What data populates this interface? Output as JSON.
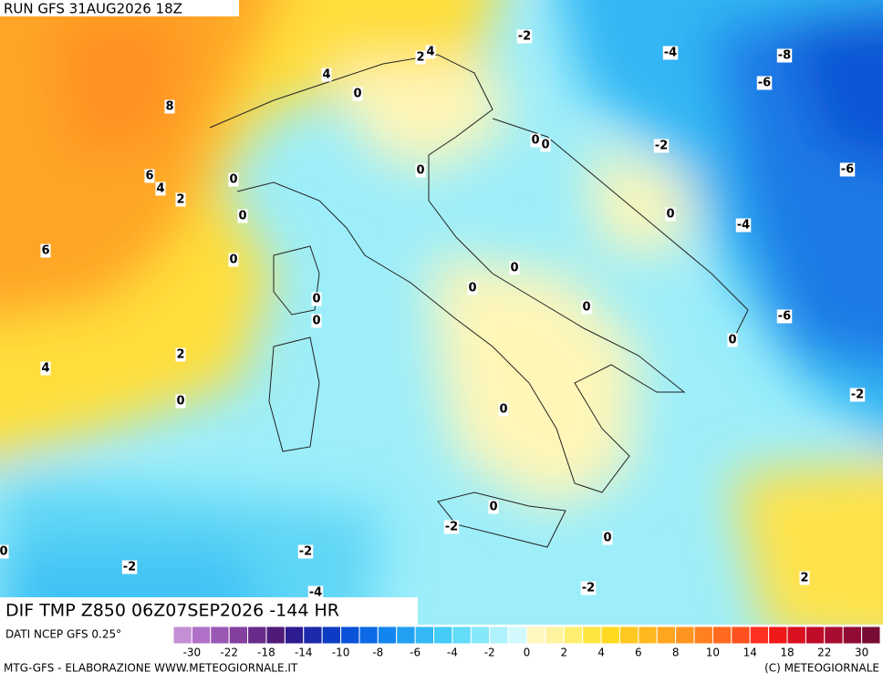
{
  "header": {
    "run": "RUN GFS 31AUG2026 18Z"
  },
  "footer": {
    "field": "DIF TMP Z850 06Z07SEP2026 -144 HR",
    "source": "DATI NCEP GFS 0.25°",
    "credit": "MTG-GFS - ELABORAZIONE WWW.METEOGIORNALE.IT",
    "copyright": "(C) METEOGIORNALE"
  },
  "map": {
    "contour_labels": [
      -2,
      -4,
      -8,
      -6,
      4,
      2,
      4,
      0,
      8,
      -2,
      0,
      0,
      0,
      -6,
      6,
      4,
      2,
      0,
      0,
      0,
      -4,
      6,
      0,
      0,
      0,
      0,
      0,
      0,
      -6,
      0,
      2,
      4,
      0,
      -2,
      0,
      0,
      -2,
      0,
      0,
      -2,
      -2,
      2,
      -4,
      -2
    ]
  },
  "colorbar": {
    "ticks": [
      -30,
      -22,
      -18,
      -14,
      -10,
      -8,
      -6,
      -4,
      -2,
      0,
      2,
      4,
      6,
      8,
      10,
      14,
      18,
      22,
      30
    ],
    "colors": [
      "#c58fd6",
      "#b070c8",
      "#9a58b5",
      "#84409f",
      "#6a2c8c",
      "#4f1a78",
      "#2d1c8f",
      "#1a2aa8",
      "#0d3cc4",
      "#0a52d8",
      "#0c6ae6",
      "#1485ee",
      "#22a0f2",
      "#33b8f5",
      "#44ccf7",
      "#62dcf8",
      "#86e8f9",
      "#aef2fb",
      "#d2fafd",
      "#fff7c0",
      "#fff3a0",
      "#ffee70",
      "#ffe640",
      "#ffda20",
      "#ffc820",
      "#ffb820",
      "#ffa520",
      "#ff9520",
      "#ff8020",
      "#ff6a20",
      "#ff5020",
      "#ff3020",
      "#f01818",
      "#d81020",
      "#c00c28",
      "#a80c30",
      "#900c34",
      "#780c34"
    ]
  }
}
